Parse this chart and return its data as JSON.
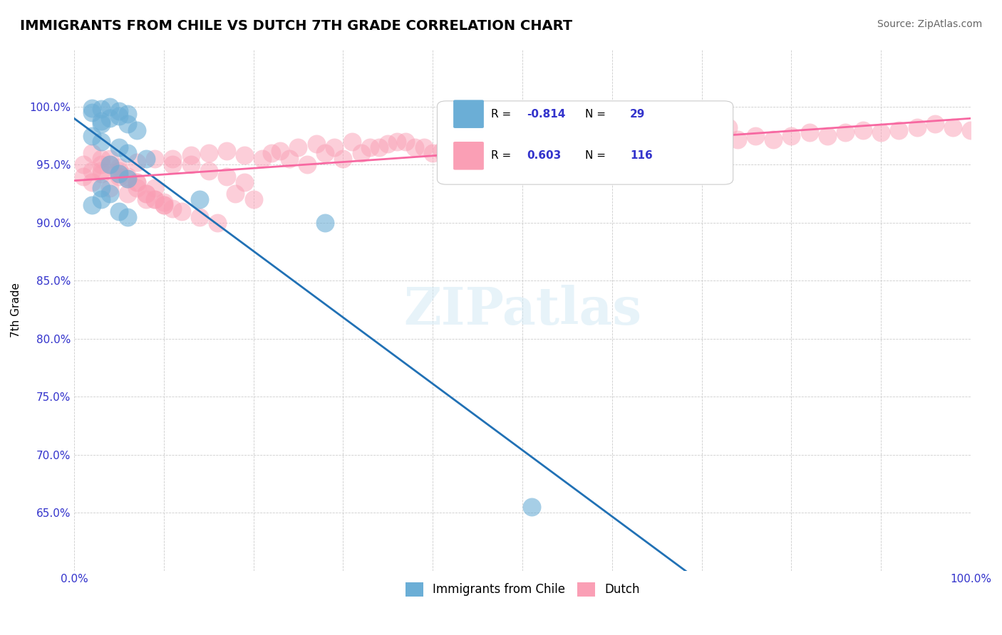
{
  "title": "IMMIGRANTS FROM CHILE VS DUTCH 7TH GRADE CORRELATION CHART",
  "source_text": "Source: ZipAtlas.com",
  "xlabel": "",
  "ylabel": "7th Grade",
  "xmin": 0.0,
  "xmax": 1.0,
  "ymin": 0.6,
  "ymax": 1.05,
  "yticks": [
    0.65,
    0.7,
    0.75,
    0.8,
    0.85,
    0.9,
    0.95,
    1.0
  ],
  "ytick_labels": [
    "65.0%",
    "70.0%",
    "75.0%",
    "80.0%",
    "85.0%",
    "90.0%",
    "95.0%",
    "100.0%"
  ],
  "xticks": [
    0.0,
    0.1,
    0.2,
    0.3,
    0.4,
    0.5,
    0.6,
    0.7,
    0.8,
    0.9,
    1.0
  ],
  "xtick_labels": [
    "0.0%",
    "",
    "",
    "",
    "",
    "",
    "",
    "",
    "",
    "",
    "100.0%"
  ],
  "blue_color": "#6baed6",
  "pink_color": "#fa9fb5",
  "blue_line_color": "#2171b5",
  "pink_line_color": "#f768a1",
  "R_blue": -0.814,
  "N_blue": 29,
  "R_pink": 0.603,
  "N_pink": 116,
  "legend_label_blue": "Immigrants from Chile",
  "legend_label_pink": "Dutch",
  "watermark": "ZIPatlas",
  "blue_scatter_x": [
    0.02,
    0.03,
    0.04,
    0.05,
    0.06,
    0.03,
    0.04,
    0.05,
    0.06,
    0.07,
    0.02,
    0.03,
    0.05,
    0.06,
    0.08,
    0.04,
    0.05,
    0.06,
    0.03,
    0.04,
    0.02,
    0.03,
    0.05,
    0.06,
    0.14,
    0.28,
    0.51,
    0.02,
    0.03
  ],
  "blue_scatter_y": [
    0.995,
    0.998,
    1.0,
    0.996,
    0.994,
    0.988,
    0.99,
    0.992,
    0.985,
    0.98,
    0.975,
    0.97,
    0.965,
    0.96,
    0.955,
    0.95,
    0.942,
    0.938,
    0.93,
    0.925,
    0.915,
    0.92,
    0.91,
    0.905,
    0.92,
    0.9,
    0.655,
    0.999,
    0.985
  ],
  "pink_scatter_x": [
    0.01,
    0.02,
    0.03,
    0.04,
    0.05,
    0.06,
    0.07,
    0.08,
    0.09,
    0.1,
    0.02,
    0.03,
    0.04,
    0.05,
    0.06,
    0.07,
    0.08,
    0.09,
    0.1,
    0.11,
    0.02,
    0.04,
    0.06,
    0.08,
    0.1,
    0.12,
    0.14,
    0.16,
    0.18,
    0.2,
    0.01,
    0.03,
    0.05,
    0.07,
    0.09,
    0.11,
    0.13,
    0.15,
    0.17,
    0.19,
    0.22,
    0.24,
    0.26,
    0.28,
    0.3,
    0.32,
    0.34,
    0.36,
    0.38,
    0.4,
    0.42,
    0.44,
    0.46,
    0.48,
    0.5,
    0.52,
    0.54,
    0.56,
    0.58,
    0.6,
    0.62,
    0.64,
    0.66,
    0.68,
    0.7,
    0.72,
    0.74,
    0.76,
    0.78,
    0.8,
    0.82,
    0.84,
    0.86,
    0.88,
    0.9,
    0.92,
    0.94,
    0.96,
    0.98,
    1.0,
    0.03,
    0.05,
    0.07,
    0.09,
    0.11,
    0.13,
    0.15,
    0.17,
    0.19,
    0.21,
    0.23,
    0.25,
    0.27,
    0.29,
    0.31,
    0.33,
    0.35,
    0.37,
    0.39,
    0.41,
    0.43,
    0.45,
    0.47,
    0.49,
    0.51,
    0.53,
    0.55,
    0.57,
    0.59,
    0.61,
    0.63,
    0.65,
    0.67,
    0.69,
    0.71,
    0.73
  ],
  "pink_scatter_y": [
    0.94,
    0.945,
    0.95,
    0.955,
    0.942,
    0.938,
    0.93,
    0.925,
    0.92,
    0.915,
    0.96,
    0.955,
    0.95,
    0.945,
    0.94,
    0.935,
    0.925,
    0.92,
    0.918,
    0.912,
    0.935,
    0.93,
    0.925,
    0.92,
    0.915,
    0.91,
    0.905,
    0.9,
    0.925,
    0.92,
    0.95,
    0.945,
    0.94,
    0.935,
    0.93,
    0.955,
    0.95,
    0.945,
    0.94,
    0.935,
    0.96,
    0.955,
    0.95,
    0.96,
    0.955,
    0.96,
    0.965,
    0.97,
    0.965,
    0.96,
    0.958,
    0.96,
    0.965,
    0.96,
    0.955,
    0.96,
    0.965,
    0.96,
    0.965,
    0.97,
    0.968,
    0.965,
    0.97,
    0.972,
    0.968,
    0.97,
    0.972,
    0.975,
    0.972,
    0.975,
    0.978,
    0.975,
    0.978,
    0.98,
    0.978,
    0.98,
    0.982,
    0.985,
    0.982,
    0.98,
    0.942,
    0.948,
    0.952,
    0.955,
    0.95,
    0.958,
    0.96,
    0.962,
    0.958,
    0.955,
    0.962,
    0.965,
    0.968,
    0.965,
    0.97,
    0.965,
    0.968,
    0.97,
    0.965,
    0.962,
    0.968,
    0.97,
    0.965,
    0.968,
    0.972,
    0.975,
    0.97,
    0.972,
    0.97,
    0.975,
    0.972,
    0.975,
    0.978,
    0.98,
    0.985,
    0.982
  ]
}
